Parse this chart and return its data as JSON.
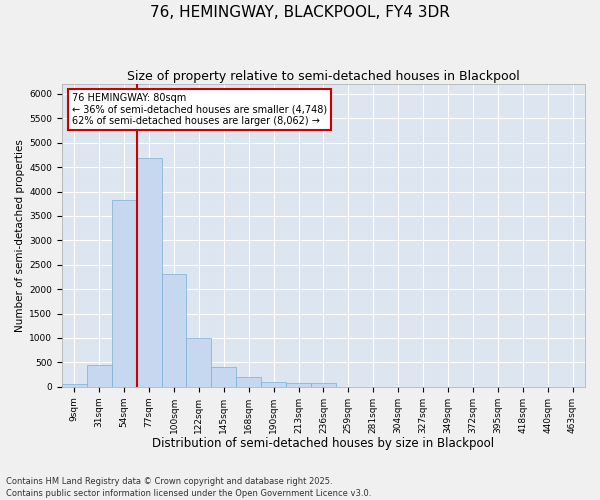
{
  "title": "76, HEMINGWAY, BLACKPOOL, FY4 3DR",
  "subtitle": "Size of property relative to semi-detached houses in Blackpool",
  "xlabel": "Distribution of semi-detached houses by size in Blackpool",
  "ylabel": "Number of semi-detached properties",
  "categories": [
    "9sqm",
    "31sqm",
    "54sqm",
    "77sqm",
    "100sqm",
    "122sqm",
    "145sqm",
    "168sqm",
    "190sqm",
    "213sqm",
    "236sqm",
    "259sqm",
    "281sqm",
    "304sqm",
    "327sqm",
    "349sqm",
    "372sqm",
    "395sqm",
    "418sqm",
    "440sqm",
    "463sqm"
  ],
  "values": [
    50,
    440,
    3820,
    4680,
    2300,
    1000,
    410,
    200,
    90,
    70,
    70,
    0,
    0,
    0,
    0,
    0,
    0,
    0,
    0,
    0,
    0
  ],
  "bar_color": "#c5d8f0",
  "bar_edge_color": "#7bafd4",
  "vline_color": "#cc0000",
  "vline_x_index": 3,
  "annotation_text": "76 HEMINGWAY: 80sqm\n← 36% of semi-detached houses are smaller (4,748)\n62% of semi-detached houses are larger (8,062) →",
  "annotation_box_facecolor": "#ffffff",
  "annotation_box_edgecolor": "#cc0000",
  "ylim": [
    0,
    6200
  ],
  "yticks": [
    0,
    500,
    1000,
    1500,
    2000,
    2500,
    3000,
    3500,
    4000,
    4500,
    5000,
    5500,
    6000
  ],
  "plot_bg_color": "#dde6f0",
  "fig_bg_color": "#f0f0f0",
  "grid_color": "#ffffff",
  "footer": "Contains HM Land Registry data © Crown copyright and database right 2025.\nContains public sector information licensed under the Open Government Licence v3.0.",
  "title_fontsize": 11,
  "subtitle_fontsize": 9,
  "xlabel_fontsize": 8.5,
  "ylabel_fontsize": 7.5,
  "tick_fontsize": 6.5,
  "annot_fontsize": 7,
  "footer_fontsize": 6
}
